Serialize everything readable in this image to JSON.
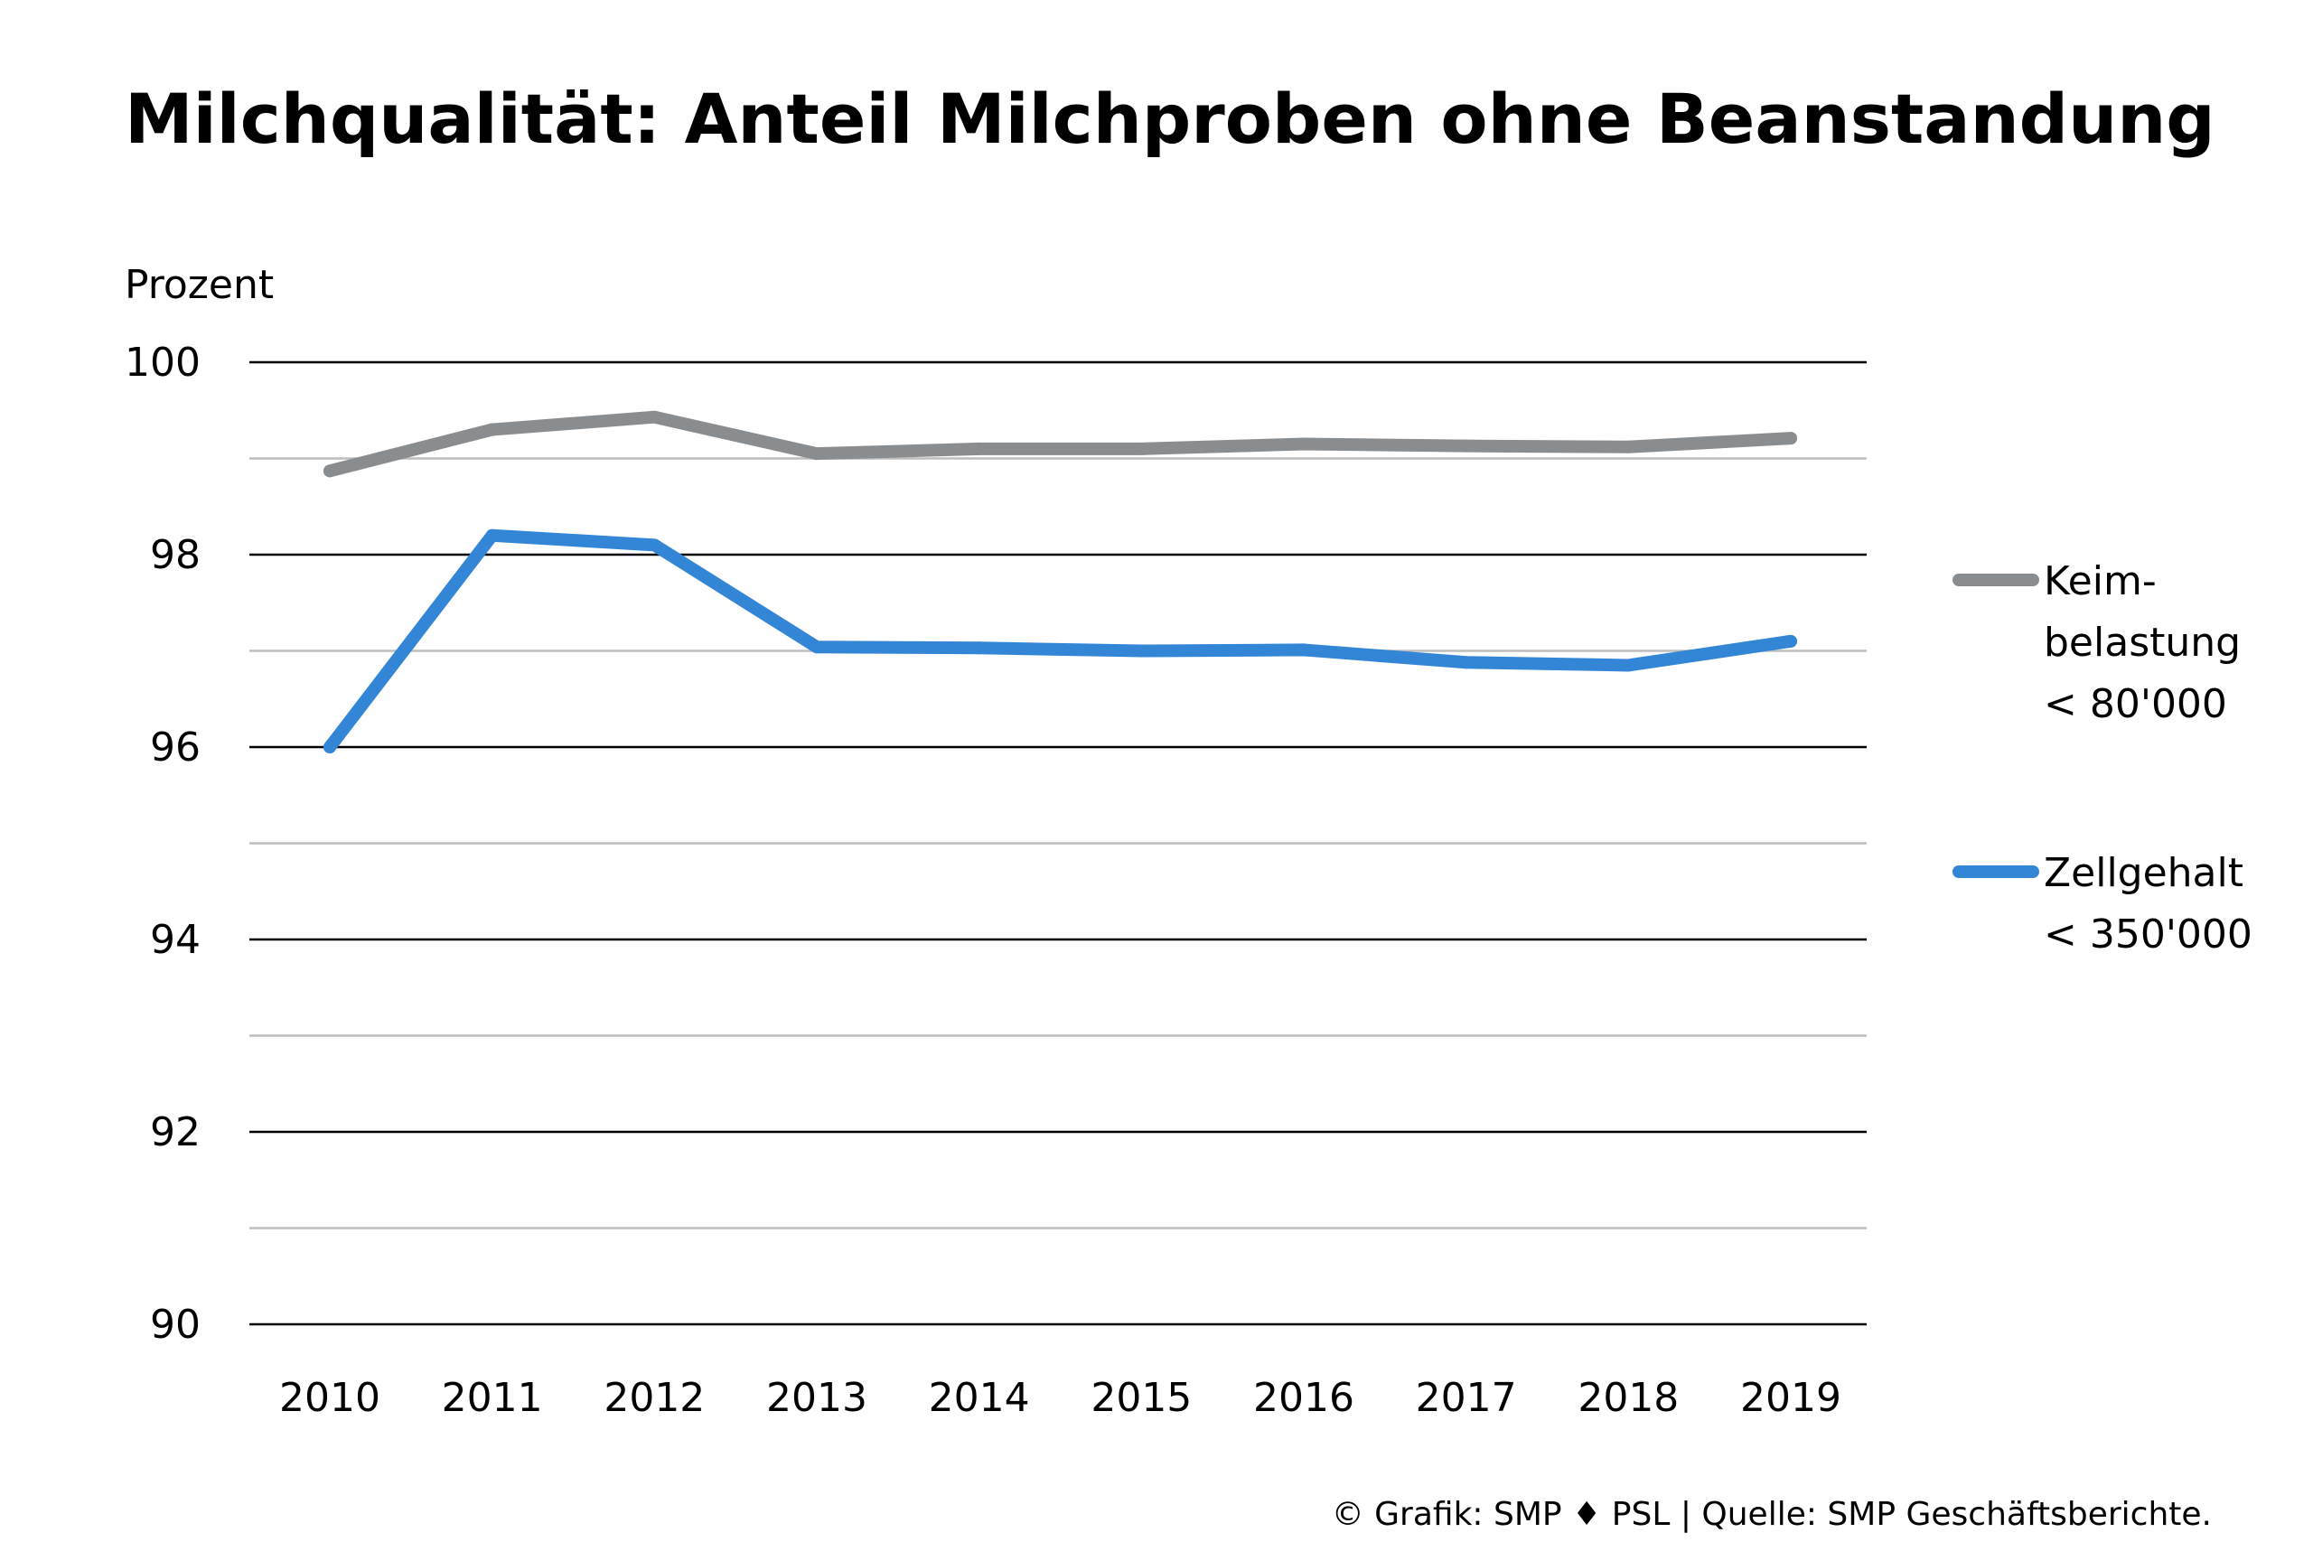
{
  "chart_data": {
    "type": "line",
    "title": "Milchqualität: Anteil Milchproben ohne Beanstandung",
    "ylabel": "Prozent",
    "xlabel": "",
    "categories": [
      "2010",
      "2011",
      "2012",
      "2013",
      "2014",
      "2015",
      "2016",
      "2017",
      "2018",
      "2019"
    ],
    "ylim": [
      90,
      100
    ],
    "yticks": [
      "90",
      "92",
      "94",
      "96",
      "98",
      "100"
    ],
    "grid": true,
    "legend_position": "right",
    "series": [
      {
        "name": "Keim-\nbelastung\n< 80'000",
        "legend_lines": [
          "Keim-",
          "belastung",
          "< 80'000"
        ],
        "color": "#8a8d90",
        "values": [
          98.87,
          99.3,
          99.43,
          99.05,
          99.1,
          99.1,
          99.15,
          99.13,
          99.12,
          99.21
        ]
      },
      {
        "name": "Zellgehalt\n< 350'000",
        "legend_lines": [
          "Zellgehalt",
          "< 350'000"
        ],
        "color": "#3385d6",
        "values": [
          96.0,
          98.2,
          98.1,
          97.04,
          97.03,
          97.0,
          97.01,
          96.88,
          96.85,
          97.1
        ]
      }
    ]
  },
  "source": "© Grafik: SMP ♦ PSL | Quelle: SMP Geschäftsberichte.",
  "colors": {
    "major_grid": "#000000",
    "minor_grid": "#bdbdbd",
    "text": "#000000"
  }
}
